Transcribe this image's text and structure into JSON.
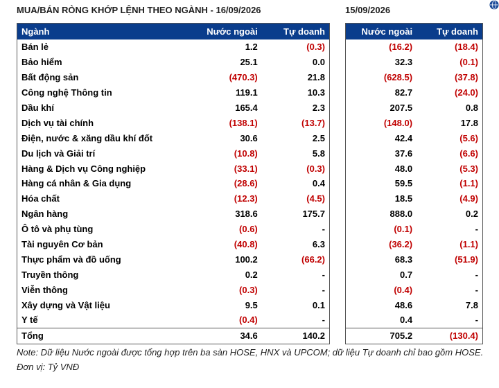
{
  "title_left": "MUA/BÁN RÒNG KHỚP LỆNH THEO NGÀNH - 16/09/2026",
  "title_right": "15/09/2026",
  "headers": {
    "sector": "Ngành",
    "foreign": "Nước ngoài",
    "prop": "Tự doanh"
  },
  "rows": [
    {
      "sector": "Bán lẻ",
      "f1": "1.2",
      "p1": "(0.3)",
      "f2": "(16.2)",
      "p2": "(18.4)"
    },
    {
      "sector": "Bảo hiểm",
      "f1": "25.1",
      "p1": "0.0",
      "f2": "32.3",
      "p2": "(0.1)"
    },
    {
      "sector": "Bất động sản",
      "f1": "(470.3)",
      "p1": "21.8",
      "f2": "(628.5)",
      "p2": "(37.8)"
    },
    {
      "sector": "Công nghệ Thông tin",
      "f1": "119.1",
      "p1": "10.3",
      "f2": "82.7",
      "p2": "(24.0)"
    },
    {
      "sector": "Dầu khí",
      "f1": "165.4",
      "p1": "2.3",
      "f2": "207.5",
      "p2": "0.8"
    },
    {
      "sector": "Dịch vụ tài chính",
      "f1": "(138.1)",
      "p1": "(13.7)",
      "f2": "(148.0)",
      "p2": "17.8"
    },
    {
      "sector": "Điện, nước & xăng dầu khí đốt",
      "f1": "30.6",
      "p1": "2.5",
      "f2": "42.4",
      "p2": "(5.6)"
    },
    {
      "sector": "Du lịch và Giải trí",
      "f1": "(10.8)",
      "p1": "5.8",
      "f2": "37.6",
      "p2": "(6.6)"
    },
    {
      "sector": "Hàng & Dịch vụ Công nghiệp",
      "f1": "(33.1)",
      "p1": "(0.3)",
      "f2": "48.0",
      "p2": "(5.3)"
    },
    {
      "sector": "Hàng cá nhân & Gia dụng",
      "f1": "(28.6)",
      "p1": "0.4",
      "f2": "59.5",
      "p2": "(1.1)"
    },
    {
      "sector": "Hóa chất",
      "f1": "(12.3)",
      "p1": "(4.5)",
      "f2": "18.5",
      "p2": "(4.9)"
    },
    {
      "sector": "Ngân hàng",
      "f1": "318.6",
      "p1": "175.7",
      "f2": "888.0",
      "p2": "0.2"
    },
    {
      "sector": "Ô tô và phụ tùng",
      "f1": "(0.6)",
      "p1": "-",
      "f2": "(0.1)",
      "p2": "-"
    },
    {
      "sector": "Tài nguyên Cơ bản",
      "f1": "(40.8)",
      "p1": "6.3",
      "f2": "(36.2)",
      "p2": "(1.1)"
    },
    {
      "sector": "Thực phẩm và đồ uống",
      "f1": "100.2",
      "p1": "(66.2)",
      "f2": "68.3",
      "p2": "(51.9)"
    },
    {
      "sector": "Truyền thông",
      "f1": "0.2",
      "p1": "-",
      "f2": "0.7",
      "p2": "-"
    },
    {
      "sector": "Viễn thông",
      "f1": "(0.3)",
      "p1": "-",
      "f2": "(0.4)",
      "p2": "-"
    },
    {
      "sector": "Xây dựng và Vật liệu",
      "f1": "9.5",
      "p1": "0.1",
      "f2": "48.6",
      "p2": "7.8"
    },
    {
      "sector": "Y tế",
      "f1": "(0.4)",
      "p1": "-",
      "f2": "0.4",
      "p2": "-"
    }
  ],
  "total": {
    "sector": "Tổng",
    "f1": "34.6",
    "p1": "140.2",
    "f2": "705.2",
    "p2": "(130.4)"
  },
  "note": "Note: Dữ liệu Nước ngoài được tổng hợp trên ba sàn HOSE, HNX và UPCOM; dữ liệu Tự doanh chỉ bao gồm HOSE. Đơn vị: Tỷ VNĐ",
  "colors": {
    "header_bg": "#0a3d8c",
    "negative": "#c00000"
  },
  "icons": {
    "corner": "globe-icon"
  }
}
